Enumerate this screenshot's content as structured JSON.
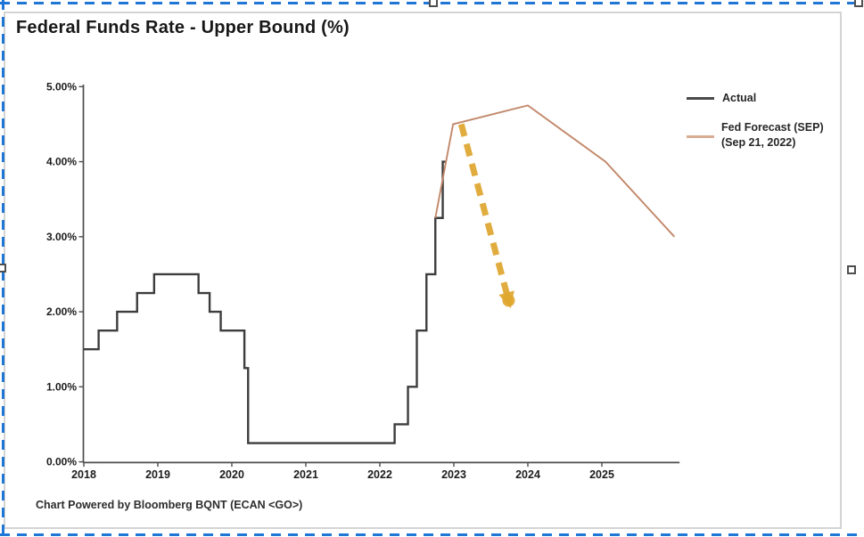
{
  "selection": {
    "border_color": "#1f76d5",
    "handles": [
      "top-center",
      "top-right",
      "left-middle",
      "right-middle"
    ]
  },
  "chart_data": {
    "type": "line",
    "title": "Federal Funds Rate - Upper Bound (%)",
    "footer": "Chart Powered by Bloomberg BQNT (ECAN <GO>)",
    "xlabel": "",
    "ylabel": "",
    "grid": false,
    "legend_position": "right",
    "xlim": [
      2018,
      2026.05
    ],
    "ylim": [
      0,
      5
    ],
    "x_ticks": [
      {
        "label": "2018",
        "value": 2018
      },
      {
        "label": "2019",
        "value": 2019
      },
      {
        "label": "2020",
        "value": 2020
      },
      {
        "label": "2021",
        "value": 2021
      },
      {
        "label": "2022",
        "value": 2022
      },
      {
        "label": "2023",
        "value": 2023
      },
      {
        "label": "2024",
        "value": 2024
      },
      {
        "label": "2025",
        "value": 2025
      }
    ],
    "y_ticks": [
      {
        "label": "0.00%",
        "value": 0
      },
      {
        "label": "1.00%",
        "value": 1
      },
      {
        "label": "2.00%",
        "value": 2
      },
      {
        "label": "3.00%",
        "value": 3
      },
      {
        "label": "4.00%",
        "value": 4
      },
      {
        "label": "5.00%",
        "value": 5
      }
    ],
    "legend": [
      {
        "label": "Actual",
        "sublabel": "",
        "sample_color": "#4a4a4a"
      },
      {
        "label": "Fed Forecast (SEP)",
        "sublabel": "(Sep 21, 2022)",
        "sample_color": "#d8ab93"
      }
    ],
    "series": [
      {
        "name": "Actual",
        "style": "step",
        "color": "#3d3d3d",
        "points": [
          [
            2018.0,
            1.5
          ],
          [
            2018.2,
            1.75
          ],
          [
            2018.45,
            2.0
          ],
          [
            2018.72,
            2.25
          ],
          [
            2018.95,
            2.5
          ],
          [
            2019.55,
            2.25
          ],
          [
            2019.7,
            2.0
          ],
          [
            2019.85,
            1.75
          ],
          [
            2020.17,
            1.25
          ],
          [
            2020.22,
            0.25
          ],
          [
            2022.2,
            0.5
          ],
          [
            2022.38,
            1.0
          ],
          [
            2022.5,
            1.75
          ],
          [
            2022.63,
            2.5
          ],
          [
            2022.75,
            3.25
          ],
          [
            2022.85,
            4.0
          ]
        ],
        "end_x": 2022.9
      },
      {
        "name": "Fed Forecast (SEP) (Sep 21, 2022)",
        "style": "line",
        "color": "#c2886a",
        "points": [
          [
            2022.75,
            3.25
          ],
          [
            2022.99,
            4.5
          ],
          [
            2024.0,
            4.75
          ],
          [
            2025.05,
            4.0
          ],
          [
            2025.98,
            3.0
          ]
        ]
      }
    ],
    "annotation_arrow": {
      "style": "dashed",
      "color": "#dfa62e",
      "from": [
        2023.1,
        4.5
      ],
      "to": [
        2023.74,
        2.15
      ]
    }
  }
}
